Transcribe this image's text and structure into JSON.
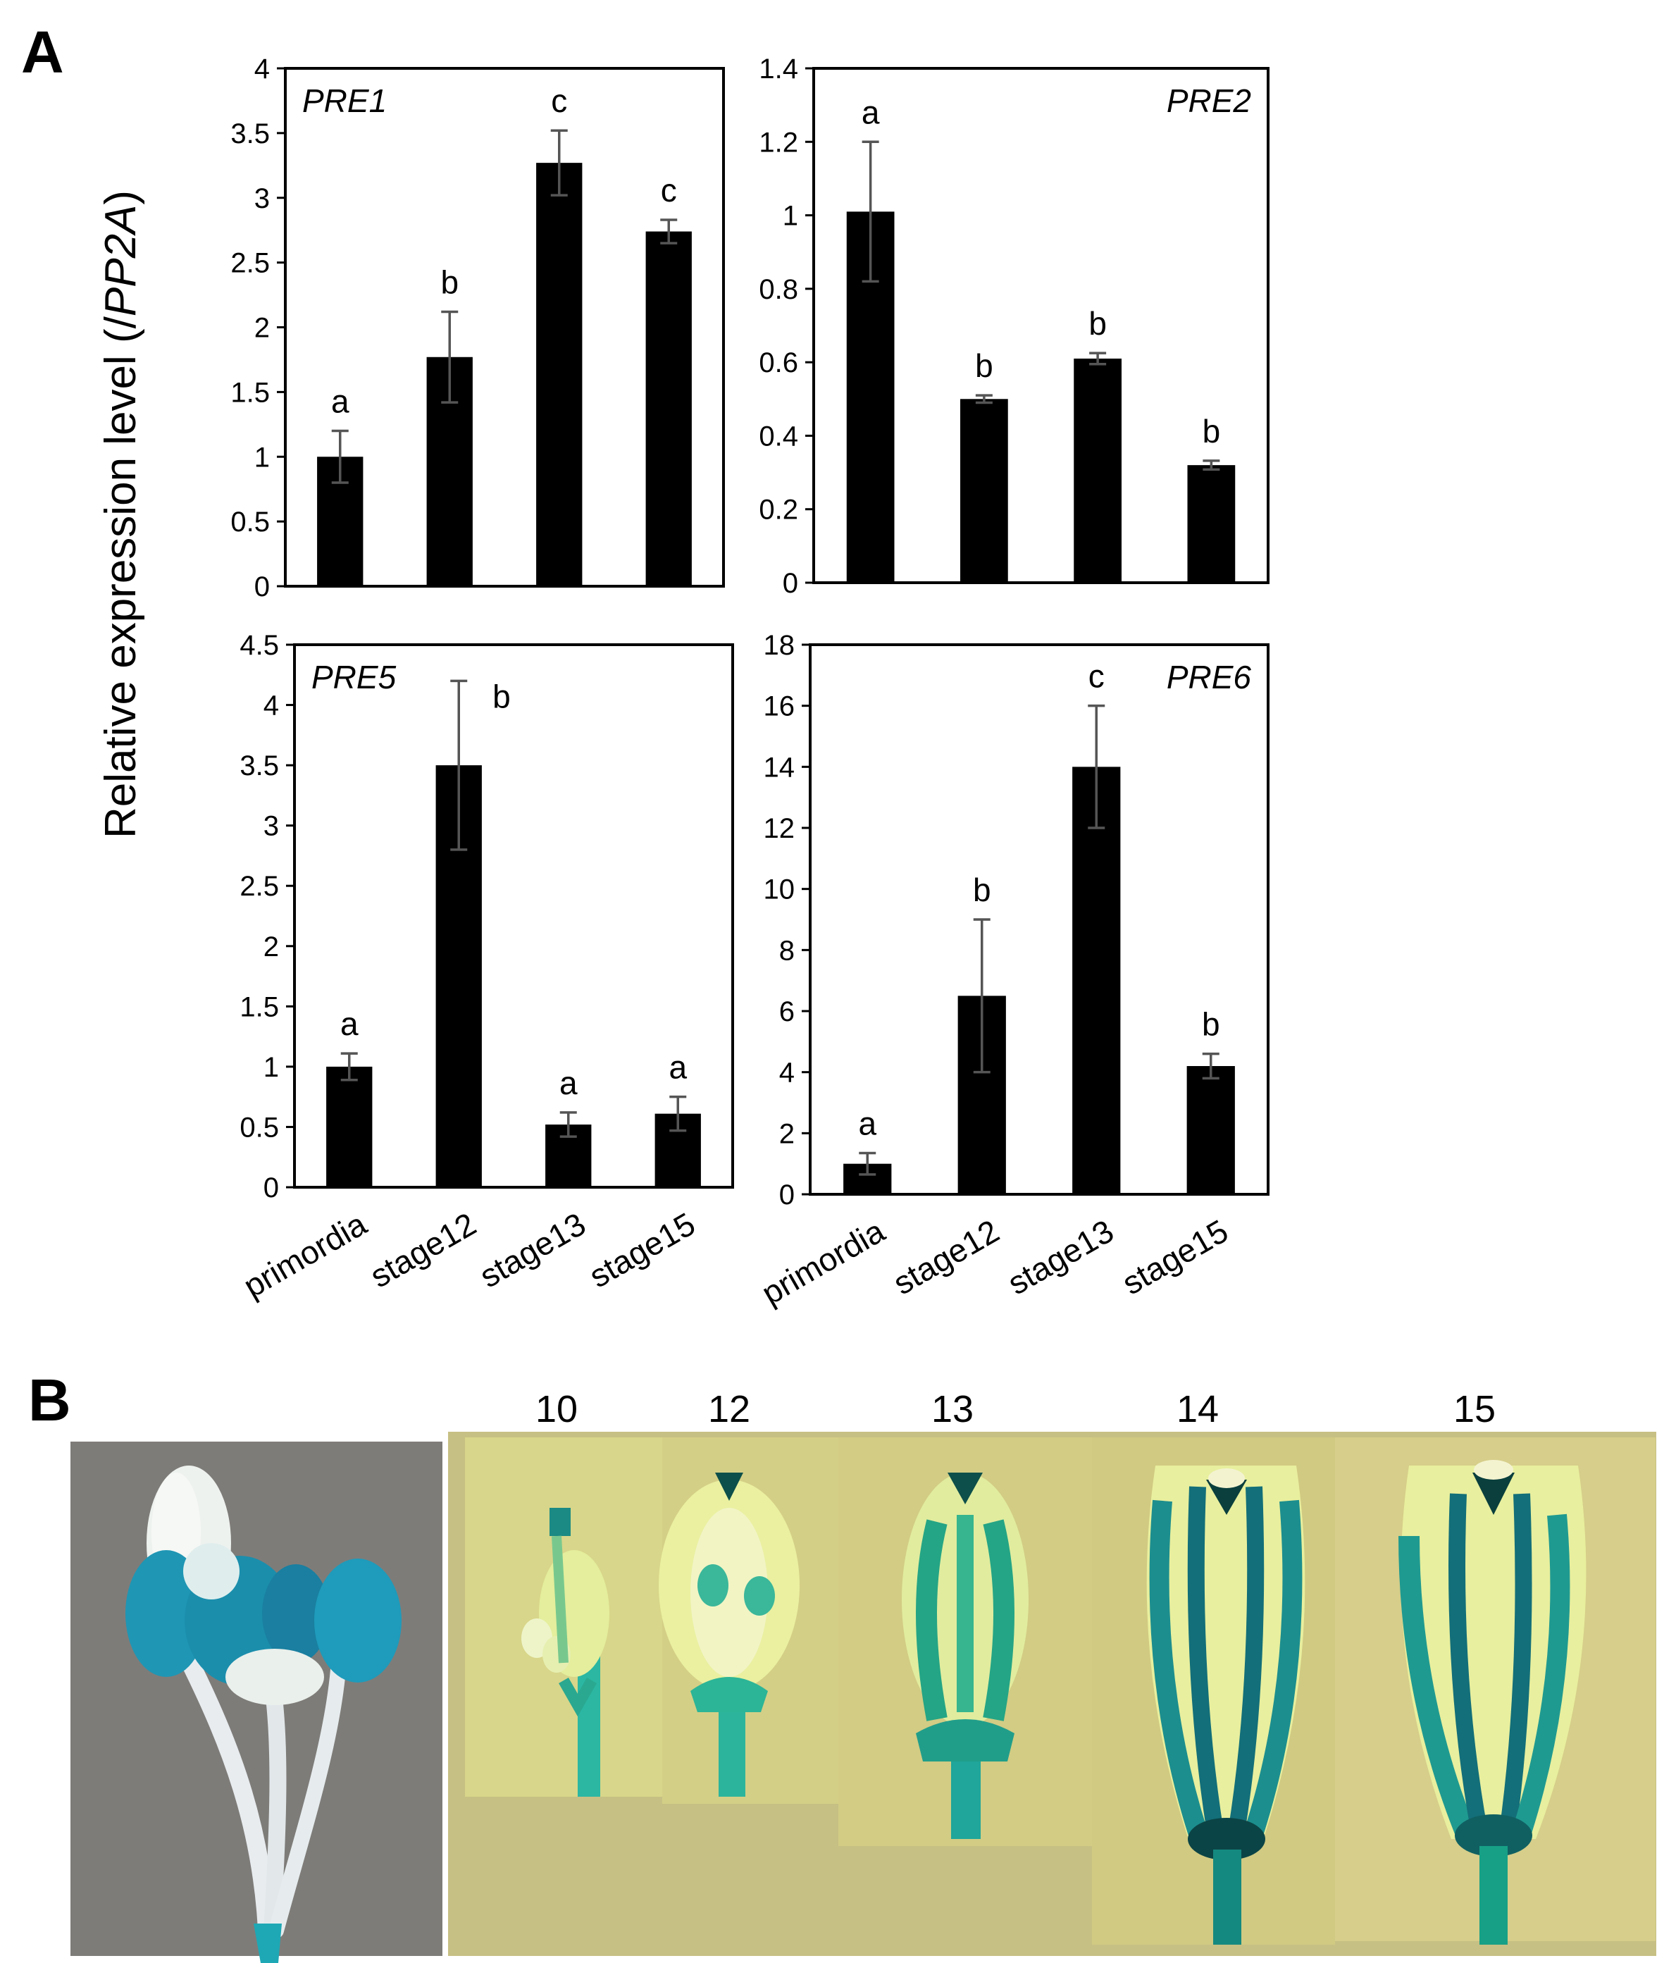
{
  "figure": {
    "panel_a_letter": "A",
    "panel_b_letter": "B",
    "y_label_prefix": "Relative expression level (/",
    "y_label_gene": "PP2A",
    "y_label_suffix": ")"
  },
  "chart_data": [
    {
      "type": "bar",
      "title": "PRE1",
      "categories": [
        "primordia",
        "stage12",
        "stage13",
        "stage15"
      ],
      "values": [
        1.0,
        1.77,
        3.27,
        2.74
      ],
      "errors": [
        0.2,
        0.35,
        0.25,
        0.09
      ],
      "significance": [
        "a",
        "b",
        "c",
        "c"
      ],
      "ylim": [
        0,
        4
      ],
      "yticks": [
        "0",
        "0.5",
        "1",
        "1.5",
        "2",
        "2.5",
        "3",
        "3.5",
        "4"
      ],
      "show_x_labels": false,
      "legend": "top-left",
      "color": "#000000",
      "grid": false
    },
    {
      "type": "bar",
      "title": "PRE2",
      "categories": [
        "primordia",
        "stage12",
        "stage13",
        "stage15"
      ],
      "values": [
        1.01,
        0.5,
        0.61,
        0.32
      ],
      "errors": [
        0.19,
        0.01,
        0.015,
        0.012
      ],
      "significance": [
        "a",
        "b",
        "b",
        "b"
      ],
      "ylim": [
        0,
        1.4
      ],
      "yticks": [
        "0",
        "0.2",
        "0.4",
        "0.6",
        "0.8",
        "1",
        "1.2",
        "1.4"
      ],
      "show_x_labels": false,
      "legend": "top-right",
      "color": "#000000",
      "grid": false
    },
    {
      "type": "bar",
      "title": "PRE5",
      "categories": [
        "primordia",
        "stage12",
        "stage13",
        "stage15"
      ],
      "values": [
        1.0,
        3.5,
        0.52,
        0.61
      ],
      "errors": [
        0.11,
        0.7,
        0.1,
        0.14
      ],
      "significance": [
        "a",
        "b",
        "a",
        "a"
      ],
      "ylim": [
        0,
        4.5
      ],
      "yticks": [
        "0",
        "0.5",
        "1",
        "1.5",
        "2",
        "2.5",
        "3",
        "3.5",
        "4",
        "4.5"
      ],
      "show_x_labels": true,
      "legend": "top-left",
      "color": "#000000",
      "grid": false
    },
    {
      "type": "bar",
      "title": "PRE6",
      "categories": [
        "primordia",
        "stage12",
        "stage13",
        "stage15"
      ],
      "values": [
        1.0,
        6.5,
        14.0,
        4.2
      ],
      "errors": [
        0.35,
        2.5,
        2.0,
        0.4
      ],
      "significance": [
        "a",
        "b",
        "c",
        "b"
      ],
      "ylim": [
        0,
        18
      ],
      "yticks": [
        "0",
        "2",
        "4",
        "6",
        "8",
        "10",
        "12",
        "14",
        "16",
        "18"
      ],
      "show_x_labels": true,
      "legend": "top-right",
      "color": "#000000",
      "grid": false
    }
  ],
  "panel_b": {
    "stage_labels": [
      "10",
      "12",
      "13",
      "14",
      "15"
    ],
    "colors": {
      "gus_blue": "#1e9aa8",
      "gus_dark": "#0b4f57",
      "bg_grey": "#7c7a77",
      "bg_yellow": "#d8d488",
      "bg_olive": "#c5be85",
      "petal_white": "#eef0e4"
    }
  }
}
